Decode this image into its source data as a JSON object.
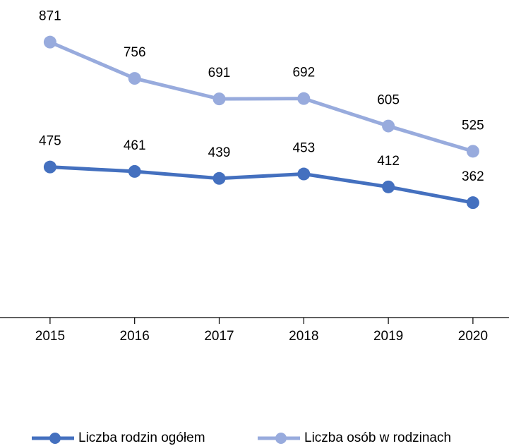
{
  "chart_data": {
    "type": "line",
    "categories": [
      "2015",
      "2016",
      "2017",
      "2018",
      "2019",
      "2020"
    ],
    "series": [
      {
        "name": "Liczba rodzin ogółem",
        "color": "#4470bf",
        "values": [
          475,
          461,
          439,
          453,
          412,
          362
        ]
      },
      {
        "name": "Liczba osób w rodzinach",
        "color": "#98abdd",
        "values": [
          871,
          756,
          691,
          692,
          605,
          525
        ]
      }
    ],
    "ylim": [
      0,
      1000
    ],
    "legend": "bottom"
  }
}
